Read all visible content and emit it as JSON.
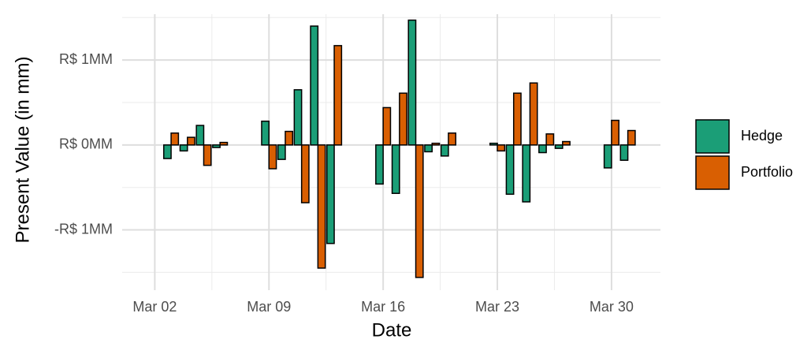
{
  "chart_data": {
    "type": "bar",
    "x_label": "Date",
    "y_label": "Present Value (in mm)",
    "x": [
      3,
      4,
      5,
      6,
      9,
      10,
      11,
      12,
      13,
      16,
      17,
      18,
      19,
      20,
      23,
      24,
      25,
      26,
      27,
      30,
      31
    ],
    "series": [
      {
        "name": "Hedge",
        "color": "#1b9e77",
        "values": [
          -0.16,
          -0.07,
          0.23,
          -0.03,
          0.28,
          -0.17,
          0.65,
          1.4,
          -1.16,
          -0.46,
          -0.57,
          1.47,
          -0.08,
          -0.13,
          0.02,
          -0.58,
          -0.67,
          -0.09,
          -0.04,
          -0.27,
          -0.18
        ]
      },
      {
        "name": "Portfolio",
        "color": "#d95f02",
        "values": [
          0.14,
          0.09,
          -0.24,
          0.03,
          -0.28,
          0.16,
          -0.68,
          -1.45,
          1.17,
          0.44,
          0.61,
          -1.56,
          0.02,
          0.14,
          -0.07,
          0.61,
          0.73,
          0.13,
          0.04,
          0.29,
          0.17
        ]
      }
    ],
    "xlim": [
      0,
      33
    ],
    "xticks": [
      {
        "value": 2,
        "label": "Mar 02"
      },
      {
        "value": 9,
        "label": "Mar 09"
      },
      {
        "value": 16,
        "label": "Mar 16"
      },
      {
        "value": 23,
        "label": "Mar 23"
      },
      {
        "value": 30,
        "label": "Mar 30"
      }
    ],
    "minor_xticks": [
      5.5,
      12.5,
      19.5,
      26.5
    ],
    "ylim": [
      -1.71,
      1.54
    ],
    "yticks": [
      {
        "value": -1,
        "label": "-R$ 1MM"
      },
      {
        "value": 0,
        "label": "R$ 0MM"
      },
      {
        "value": 1,
        "label": "R$ 1MM"
      }
    ],
    "minor_yticks": [
      -1.5,
      -0.5,
      0.5,
      1.5
    ],
    "grid": true,
    "legend": "right"
  }
}
